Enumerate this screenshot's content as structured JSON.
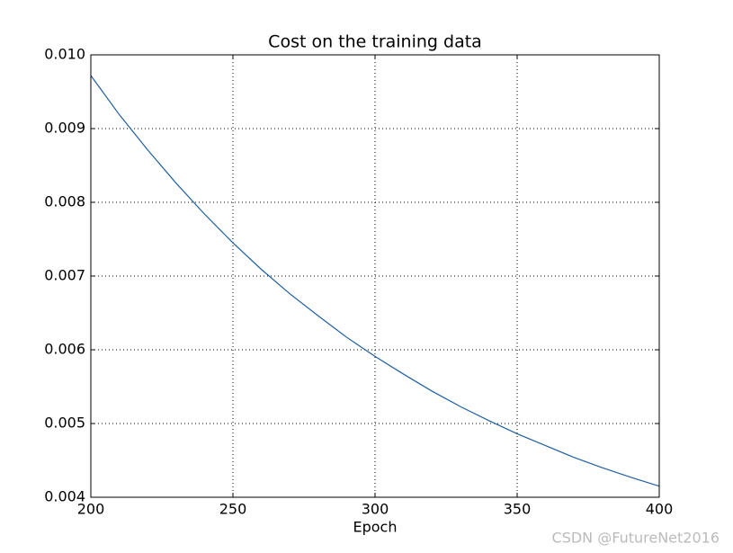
{
  "chart_data": {
    "type": "line",
    "title": "Cost on the training data",
    "x_label": "Epoch",
    "x": [
      200,
      210,
      220,
      230,
      240,
      250,
      260,
      270,
      280,
      290,
      300,
      310,
      320,
      330,
      340,
      350,
      360,
      370,
      380,
      390,
      400
    ],
    "series": [
      {
        "color": "#1f5fa0",
        "values": [
          0.00972,
          0.00919,
          0.00871,
          0.00826,
          0.00784,
          0.00745,
          0.00709,
          0.00676,
          0.00646,
          0.00617,
          0.00591,
          0.00567,
          0.00544,
          0.00523,
          0.00504,
          0.00486,
          0.0047,
          0.00454,
          0.0044,
          0.00427,
          0.00415
        ]
      }
    ],
    "xlim": [
      200,
      400
    ],
    "xticks": [
      200,
      250,
      300,
      350,
      400
    ],
    "ylim": [
      0.004,
      0.01
    ],
    "yticks": [
      0.004,
      0.005,
      0.006,
      0.007,
      0.008,
      0.009,
      {
        "value": 0.01,
        "label": "0.010"
      }
    ],
    "grid": true
  },
  "watermark": "CSDN @FutureNet2016"
}
